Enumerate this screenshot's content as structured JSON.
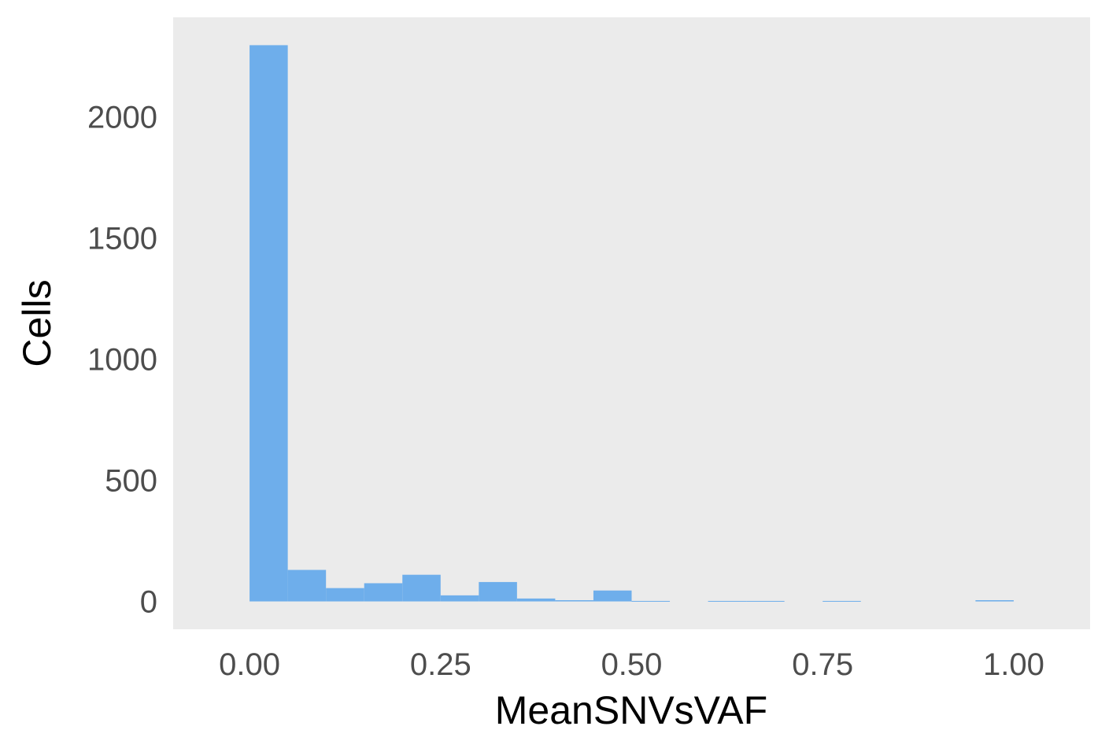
{
  "chart_data": {
    "type": "bar",
    "xlabel": "MeanSNVsVAF",
    "ylabel": "Cells",
    "xlim": [
      -0.1,
      1.1
    ],
    "ylim": [
      -115,
      2410
    ],
    "xticks": [
      0.0,
      0.25,
      0.5,
      0.75,
      1.0
    ],
    "xtick_labels": [
      "0.00",
      "0.25",
      "0.50",
      "0.75",
      "1.00"
    ],
    "yticks": [
      0,
      500,
      1000,
      1500,
      2000
    ],
    "ytick_labels": [
      "0",
      "500",
      "1000",
      "1500",
      "2000"
    ],
    "bin_width": 0.05,
    "bins": [
      {
        "x0": 0.0,
        "x1": 0.05,
        "count": 2295
      },
      {
        "x0": 0.05,
        "x1": 0.1,
        "count": 130
      },
      {
        "x0": 0.1,
        "x1": 0.15,
        "count": 55
      },
      {
        "x0": 0.15,
        "x1": 0.2,
        "count": 75
      },
      {
        "x0": 0.2,
        "x1": 0.25,
        "count": 110
      },
      {
        "x0": 0.25,
        "x1": 0.3,
        "count": 25
      },
      {
        "x0": 0.3,
        "x1": 0.35,
        "count": 80
      },
      {
        "x0": 0.35,
        "x1": 0.4,
        "count": 12
      },
      {
        "x0": 0.4,
        "x1": 0.45,
        "count": 5
      },
      {
        "x0": 0.45,
        "x1": 0.5,
        "count": 45
      },
      {
        "x0": 0.5,
        "x1": 0.55,
        "count": 2
      },
      {
        "x0": 0.55,
        "x1": 0.6,
        "count": 0
      },
      {
        "x0": 0.6,
        "x1": 0.65,
        "count": 2
      },
      {
        "x0": 0.65,
        "x1": 0.7,
        "count": 2
      },
      {
        "x0": 0.7,
        "x1": 0.75,
        "count": 0
      },
      {
        "x0": 0.75,
        "x1": 0.8,
        "count": 2
      },
      {
        "x0": 0.8,
        "x1": 0.85,
        "count": 0
      },
      {
        "x0": 0.85,
        "x1": 0.9,
        "count": 0
      },
      {
        "x0": 0.9,
        "x1": 0.95,
        "count": 0
      },
      {
        "x0": 0.95,
        "x1": 1.0,
        "count": 5
      }
    ],
    "grid": false,
    "legend": "none"
  },
  "colors": {
    "panel_background": "#ebebeb",
    "bar_fill": "#6eaeeb",
    "tick_text": "#4d4d4d",
    "axis_title_text": "#000000"
  }
}
